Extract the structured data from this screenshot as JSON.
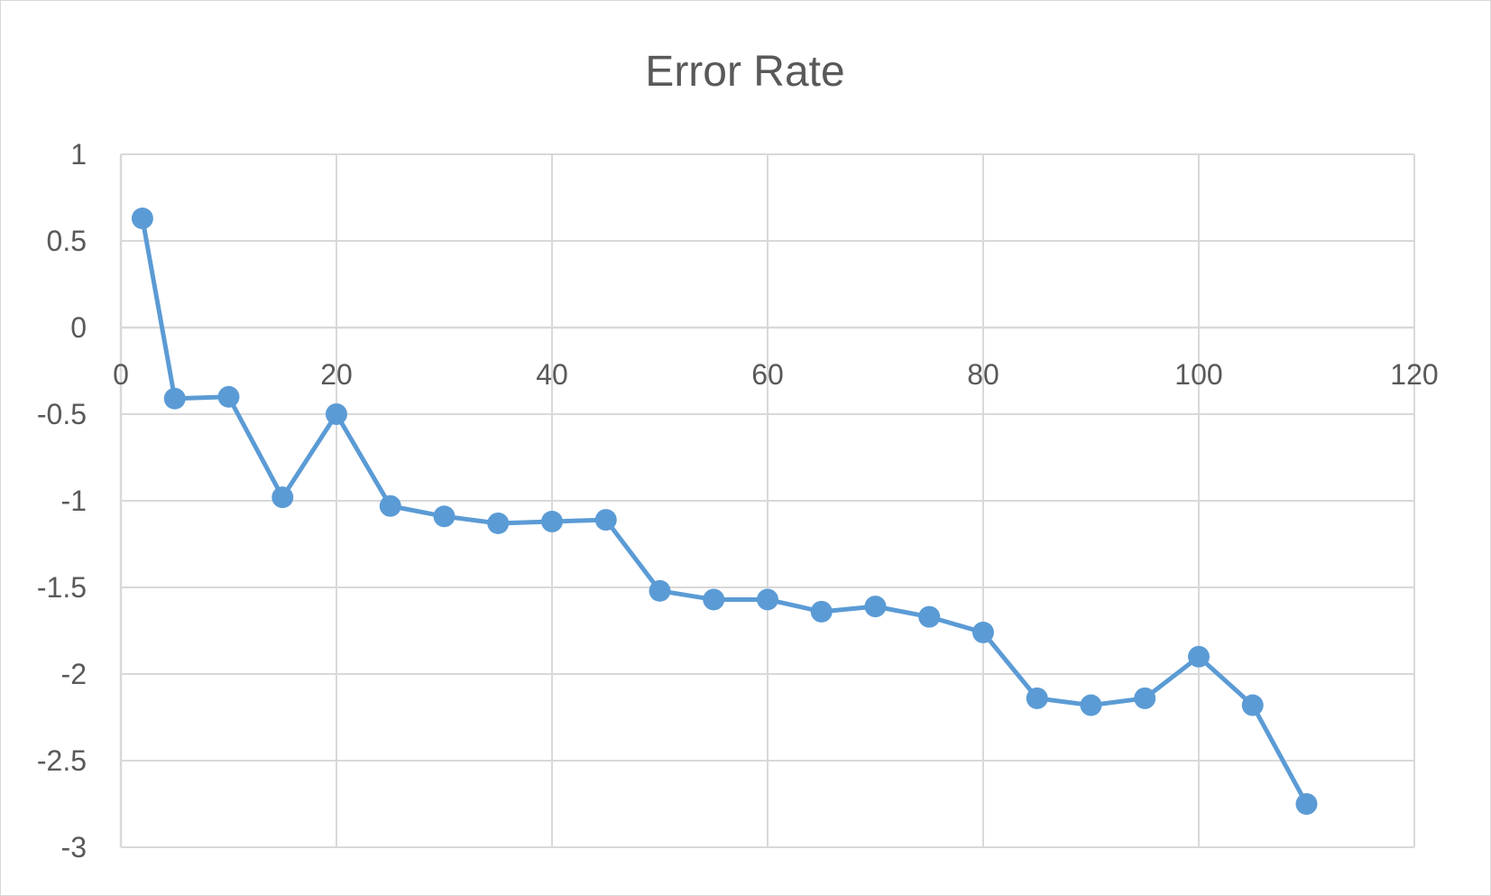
{
  "chart_data": {
    "type": "scatter",
    "mode": "lines+markers",
    "title": "Error Rate",
    "xlabel": "",
    "ylabel": "",
    "xlim": [
      0,
      120
    ],
    "ylim": [
      -3,
      1
    ],
    "x_ticks": [
      0,
      20,
      40,
      60,
      80,
      100,
      120
    ],
    "y_ticks": [
      1,
      0.5,
      0,
      -0.5,
      -1,
      -1.5,
      -2,
      -2.5,
      -3
    ],
    "grid": true,
    "legend": "none",
    "series": [
      {
        "color": "#5b9bd5",
        "points": [
          {
            "x": 2,
            "y": 0.63
          },
          {
            "x": 5,
            "y": -0.41
          },
          {
            "x": 10,
            "y": -0.4
          },
          {
            "x": 15,
            "y": -0.98
          },
          {
            "x": 20,
            "y": -0.5
          },
          {
            "x": 25,
            "y": -1.03
          },
          {
            "x": 30,
            "y": -1.09
          },
          {
            "x": 35,
            "y": -1.13
          },
          {
            "x": 40,
            "y": -1.12
          },
          {
            "x": 45,
            "y": -1.11
          },
          {
            "x": 50,
            "y": -1.52
          },
          {
            "x": 55,
            "y": -1.57
          },
          {
            "x": 60,
            "y": -1.57
          },
          {
            "x": 65,
            "y": -1.64
          },
          {
            "x": 70,
            "y": -1.61
          },
          {
            "x": 75,
            "y": -1.67
          },
          {
            "x": 80,
            "y": -1.76
          },
          {
            "x": 85,
            "y": -2.14
          },
          {
            "x": 90,
            "y": -2.18
          },
          {
            "x": 95,
            "y": -2.14
          },
          {
            "x": 100,
            "y": -1.9
          },
          {
            "x": 105,
            "y": -2.18
          },
          {
            "x": 110,
            "y": -2.75
          }
        ]
      }
    ]
  }
}
